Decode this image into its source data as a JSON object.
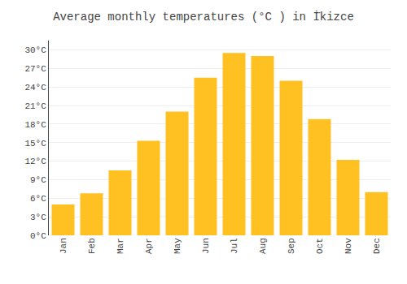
{
  "chart_data": {
    "type": "bar",
    "title": "Average monthly temperatures (°C ) in İ̇kizce",
    "categories": [
      "Jan",
      "Feb",
      "Mar",
      "Apr",
      "May",
      "Jun",
      "Jul",
      "Aug",
      "Sep",
      "Oct",
      "Nov",
      "Dec"
    ],
    "values": [
      5.0,
      6.8,
      10.5,
      15.3,
      20.0,
      25.5,
      29.5,
      29.0,
      25.0,
      18.8,
      12.2,
      7.0
    ],
    "color": "#FFC022",
    "ylim": [
      0,
      31.5
    ],
    "yticks": [
      {
        "value": 0,
        "label": "0°C"
      },
      {
        "value": 3,
        "label": "3°C"
      },
      {
        "value": 6,
        "label": "6°C"
      },
      {
        "value": 9,
        "label": "9°C"
      },
      {
        "value": 12,
        "label": "12°C"
      },
      {
        "value": 15,
        "label": "15°C"
      },
      {
        "value": 18,
        "label": "18°C"
      },
      {
        "value": 21,
        "label": "21°C"
      },
      {
        "value": 24,
        "label": "24°C"
      },
      {
        "value": 27,
        "label": "27°C"
      },
      {
        "value": 30,
        "label": "30°C"
      }
    ],
    "grid": true
  }
}
